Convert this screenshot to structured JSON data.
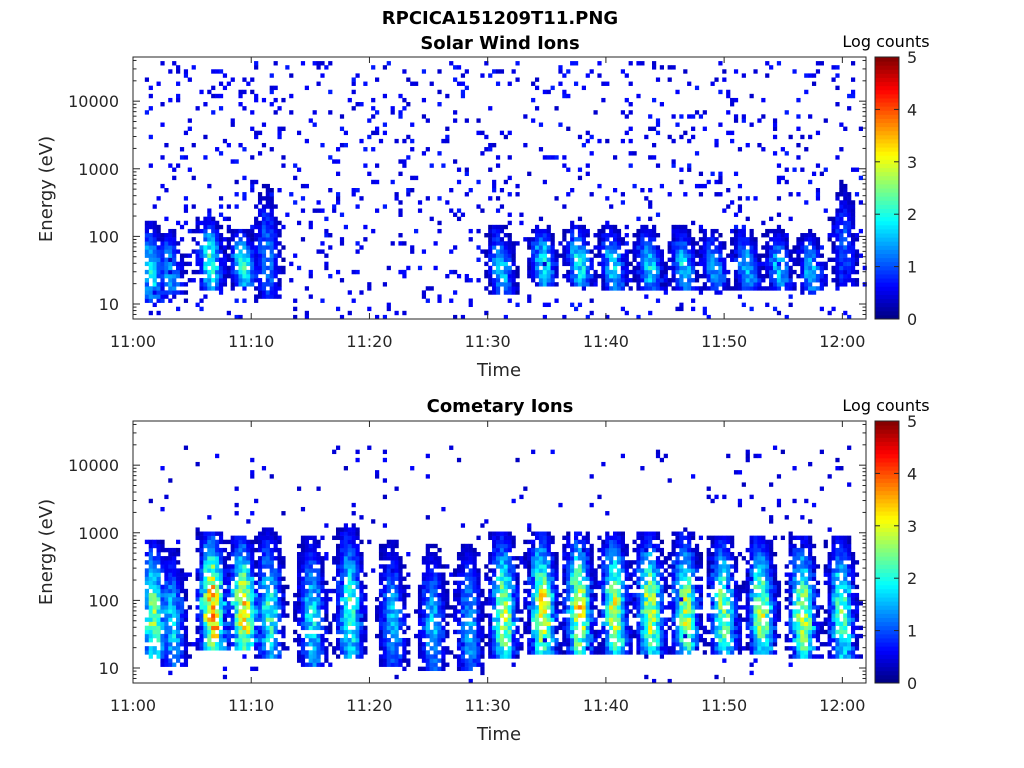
{
  "figure": {
    "title": "RPCICA151209T11.PNG"
  },
  "chart_data": [
    {
      "type": "heatmap",
      "title": "Solar Wind Ions",
      "xlabel": "Time",
      "ylabel": "Energy (eV)",
      "x_ticks": [
        "11:00",
        "11:10",
        "11:20",
        "11:30",
        "11:40",
        "11:50",
        "12:00"
      ],
      "x_range_minutes": [
        0,
        62
      ],
      "y_scale": "log",
      "y_ticks": [
        "10",
        "100",
        "1000",
        "10000"
      ],
      "y_range": [
        6,
        45000
      ],
      "colorbar": {
        "label": "Log counts",
        "ticks": [
          "0",
          "1",
          "2",
          "3",
          "4",
          "5"
        ],
        "range": [
          0,
          5
        ],
        "colormap": "jet"
      },
      "background": "#ffffff",
      "noise": {
        "min_energy": 6,
        "max_energy": 40000,
        "level": 0.7,
        "density": 0.09
      },
      "blobs": [
        {
          "t": 1.4,
          "e_lo": 12,
          "e_hi": 160,
          "peak": 1.9
        },
        {
          "t": 3.0,
          "e_lo": 15,
          "e_hi": 120,
          "peak": 1.6
        },
        {
          "t": 6.4,
          "e_lo": 18,
          "e_hi": 180,
          "peak": 2.2
        },
        {
          "t": 9.2,
          "e_lo": 20,
          "e_hi": 120,
          "peak": 2.1
        },
        {
          "t": 11.2,
          "e_lo": 14,
          "e_hi": 500,
          "peak": 1.3
        },
        {
          "t": 31.0,
          "e_lo": 15,
          "e_hi": 140,
          "peak": 1.7
        },
        {
          "t": 34.6,
          "e_lo": 20,
          "e_hi": 140,
          "peak": 2.0
        },
        {
          "t": 37.6,
          "e_lo": 20,
          "e_hi": 140,
          "peak": 2.0
        },
        {
          "t": 40.5,
          "e_lo": 18,
          "e_hi": 130,
          "peak": 1.8
        },
        {
          "t": 43.5,
          "e_lo": 18,
          "e_hi": 130,
          "peak": 1.9
        },
        {
          "t": 46.4,
          "e_lo": 18,
          "e_hi": 130,
          "peak": 1.8
        },
        {
          "t": 49.0,
          "e_lo": 18,
          "e_hi": 120,
          "peak": 1.6
        },
        {
          "t": 51.8,
          "e_lo": 18,
          "e_hi": 120,
          "peak": 1.7
        },
        {
          "t": 54.5,
          "e_lo": 18,
          "e_hi": 120,
          "peak": 1.7
        },
        {
          "t": 57.2,
          "e_lo": 15,
          "e_hi": 110,
          "peak": 1.6
        },
        {
          "t": 60.0,
          "e_lo": 20,
          "e_hi": 600,
          "peak": 1.1
        }
      ]
    },
    {
      "type": "heatmap",
      "title": "Cometary Ions",
      "xlabel": "Time",
      "ylabel": "Energy (eV)",
      "x_ticks": [
        "11:00",
        "11:10",
        "11:20",
        "11:30",
        "11:40",
        "11:50",
        "12:00"
      ],
      "x_range_minutes": [
        0,
        62
      ],
      "y_scale": "log",
      "y_ticks": [
        "10",
        "100",
        "1000",
        "10000"
      ],
      "y_range": [
        6,
        45000
      ],
      "colorbar": {
        "label": "Log counts",
        "ticks": [
          "0",
          "1",
          "2",
          "3",
          "4",
          "5"
        ],
        "range": [
          0,
          5
        ],
        "colormap": "jet"
      },
      "background": "#ffffff",
      "noise": {
        "min_energy": 6,
        "max_energy": 20000,
        "level": 0.6,
        "density": 0.03
      },
      "blobs": [
        {
          "t": 1.6,
          "e_lo": 15,
          "e_hi": 700,
          "peak": 2.6
        },
        {
          "t": 3.2,
          "e_lo": 12,
          "e_hi": 500,
          "peak": 1.8
        },
        {
          "t": 6.6,
          "e_lo": 20,
          "e_hi": 900,
          "peak": 3.8
        },
        {
          "t": 9.2,
          "e_lo": 20,
          "e_hi": 800,
          "peak": 3.4
        },
        {
          "t": 11.4,
          "e_lo": 15,
          "e_hi": 1000,
          "peak": 2.2
        },
        {
          "t": 15.0,
          "e_lo": 12,
          "e_hi": 800,
          "peak": 1.9
        },
        {
          "t": 18.2,
          "e_lo": 15,
          "e_hi": 1200,
          "peak": 2.2
        },
        {
          "t": 21.8,
          "e_lo": 12,
          "e_hi": 700,
          "peak": 1.6
        },
        {
          "t": 25.2,
          "e_lo": 10,
          "e_hi": 600,
          "peak": 1.6
        },
        {
          "t": 28.3,
          "e_lo": 10,
          "e_hi": 600,
          "peak": 1.6
        },
        {
          "t": 31.2,
          "e_lo": 15,
          "e_hi": 900,
          "peak": 2.8
        },
        {
          "t": 34.5,
          "e_lo": 18,
          "e_hi": 900,
          "peak": 3.2
        },
        {
          "t": 37.6,
          "e_lo": 18,
          "e_hi": 900,
          "peak": 3.2
        },
        {
          "t": 40.6,
          "e_lo": 18,
          "e_hi": 900,
          "peak": 3.0
        },
        {
          "t": 43.6,
          "e_lo": 18,
          "e_hi": 900,
          "peak": 3.0
        },
        {
          "t": 46.6,
          "e_lo": 18,
          "e_hi": 900,
          "peak": 2.9
        },
        {
          "t": 49.8,
          "e_lo": 18,
          "e_hi": 800,
          "peak": 2.7
        },
        {
          "t": 53.0,
          "e_lo": 18,
          "e_hi": 800,
          "peak": 2.8
        },
        {
          "t": 56.5,
          "e_lo": 15,
          "e_hi": 800,
          "peak": 2.9
        },
        {
          "t": 59.8,
          "e_lo": 15,
          "e_hi": 800,
          "peak": 2.5
        }
      ]
    }
  ]
}
